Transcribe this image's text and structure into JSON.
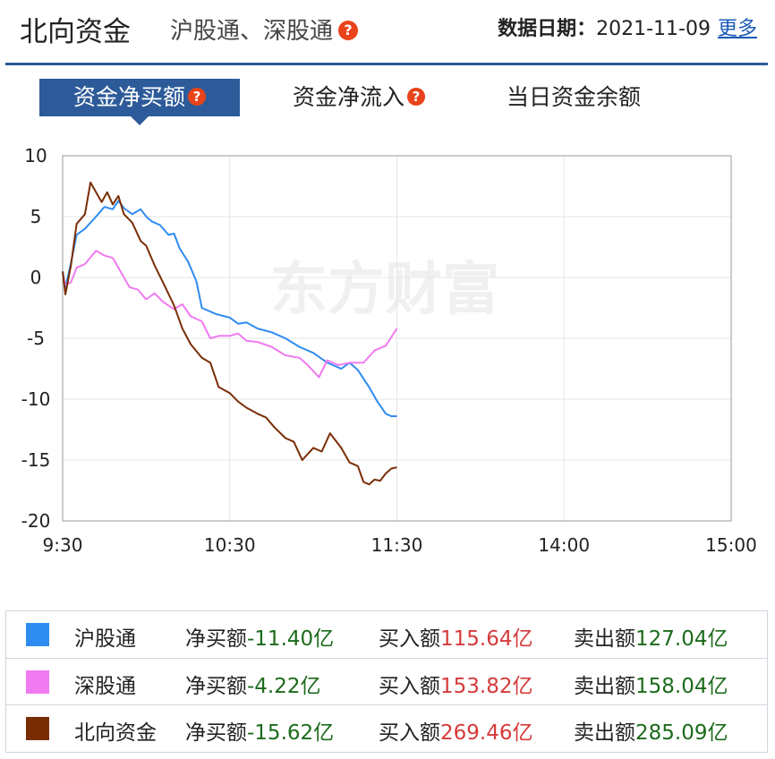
{
  "header": {
    "title": "北向资金",
    "subtitle": "沪股通、深股通",
    "help_glyph": "?",
    "date_label": "数据日期：",
    "date_value": "2021-11-09",
    "more_link": "更多"
  },
  "tabs": [
    {
      "label": "资金净买额",
      "active": true,
      "has_help": true
    },
    {
      "label": "资金净流入",
      "active": false,
      "has_help": true
    },
    {
      "label": "当日资金余额",
      "active": false,
      "has_help": false
    }
  ],
  "watermark": "东方财富",
  "chart_data": {
    "type": "line",
    "x_ticks": [
      "9:30",
      "10:30",
      "11:30",
      "14:00",
      "15:00"
    ],
    "x_range_minutes": [
      0,
      240
    ],
    "ylim": [
      -20,
      10
    ],
    "y_ticks": [
      10,
      5,
      0,
      -5,
      -10,
      -15,
      -20
    ],
    "grid": true,
    "series": [
      {
        "name": "沪股通",
        "color": "#2f8cf0",
        "x_minutes": [
          0,
          1,
          3,
          5,
          8,
          10,
          12,
          15,
          18,
          20,
          22,
          25,
          28,
          30,
          32,
          35,
          38,
          40,
          42,
          45,
          48,
          50,
          55,
          60,
          63,
          66,
          70,
          75,
          80,
          85,
          90,
          95,
          100,
          103,
          106,
          110,
          113,
          116,
          118,
          120
        ],
        "values": [
          0.5,
          -0.8,
          1.2,
          3.5,
          4.0,
          4.5,
          5.0,
          5.8,
          5.6,
          6.3,
          5.7,
          5.2,
          5.6,
          5.0,
          4.6,
          4.3,
          3.5,
          3.6,
          2.4,
          1.3,
          -0.3,
          -2.5,
          -3.0,
          -3.3,
          -3.8,
          -3.7,
          -4.2,
          -4.5,
          -5.0,
          -5.7,
          -6.2,
          -7.0,
          -7.5,
          -7.0,
          -7.6,
          -9.0,
          -10.2,
          -11.2,
          -11.4,
          -11.4
        ]
      },
      {
        "name": "深股通",
        "color": "#f07af0",
        "x_minutes": [
          0,
          1,
          3,
          5,
          8,
          12,
          15,
          18,
          21,
          24,
          27,
          30,
          33,
          36,
          40,
          43,
          46,
          50,
          53,
          56,
          60,
          63,
          66,
          70,
          75,
          80,
          85,
          88,
          92,
          95,
          99,
          103,
          108,
          112,
          116,
          120
        ],
        "values": [
          0.2,
          -0.6,
          -0.4,
          0.8,
          1.1,
          2.2,
          1.8,
          1.6,
          0.4,
          -0.8,
          -1.0,
          -1.8,
          -1.3,
          -2.0,
          -2.6,
          -2.2,
          -3.2,
          -3.6,
          -5.0,
          -4.8,
          -4.8,
          -4.6,
          -5.2,
          -5.3,
          -5.7,
          -6.4,
          -6.6,
          -7.2,
          -8.2,
          -6.8,
          -7.2,
          -7.0,
          -7.0,
          -6.0,
          -5.6,
          -4.2
        ]
      },
      {
        "name": "北向资金",
        "color": "#7a2d05",
        "x_minutes": [
          0,
          1,
          3,
          5,
          8,
          10,
          12,
          14,
          16,
          18,
          20,
          22,
          25,
          28,
          30,
          33,
          36,
          40,
          43,
          46,
          50,
          53,
          56,
          60,
          63,
          66,
          70,
          73,
          76,
          80,
          83,
          86,
          90,
          93,
          96,
          100,
          103,
          106,
          108,
          110,
          112,
          114,
          116,
          118,
          120
        ],
        "values": [
          0.5,
          -1.4,
          1.0,
          4.4,
          5.2,
          7.8,
          7.0,
          6.2,
          7.0,
          6.0,
          6.7,
          5.2,
          4.5,
          3.0,
          2.6,
          1.0,
          -0.4,
          -2.3,
          -4.2,
          -5.5,
          -6.6,
          -7.0,
          -9.0,
          -9.5,
          -10.2,
          -10.7,
          -11.2,
          -11.5,
          -12.3,
          -13.2,
          -13.5,
          -15.0,
          -14.0,
          -14.3,
          -12.8,
          -14.0,
          -15.2,
          -15.5,
          -16.8,
          -17.0,
          -16.6,
          -16.7,
          -16.1,
          -15.7,
          -15.6
        ]
      }
    ]
  },
  "legend_rows": [
    {
      "name": "沪股通",
      "color": "#2f8cf0",
      "net_label": "净买额",
      "net_value": "-11.40亿",
      "buy_label": "买入额",
      "buy_value": "115.64亿",
      "sell_label": "卖出额",
      "sell_value": "127.04亿"
    },
    {
      "name": "深股通",
      "color": "#f07af0",
      "net_label": "净买额",
      "net_value": "-4.22亿",
      "buy_label": "买入额",
      "buy_value": "153.82亿",
      "sell_label": "卖出额",
      "sell_value": "158.04亿"
    },
    {
      "name": "北向资金",
      "color": "#7a2d05",
      "net_label": "净买额",
      "net_value": "-15.62亿",
      "buy_label": "买入额",
      "buy_value": "269.46亿",
      "sell_label": "卖出额",
      "sell_value": "285.09亿"
    }
  ]
}
